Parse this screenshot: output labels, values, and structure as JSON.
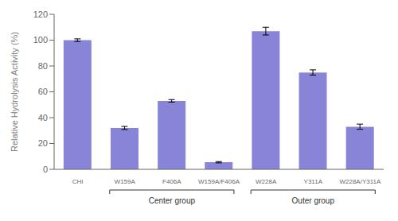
{
  "chart_data": {
    "type": "bar",
    "categories": [
      "CHI",
      "W159A",
      "F406A",
      "W159A/F406A",
      "W228A",
      "Y311A",
      "W228A/Y311A"
    ],
    "values": [
      100,
      32,
      53,
      5.5,
      107,
      75,
      33
    ],
    "errors": [
      1.0,
      1.2,
      1.0,
      0.5,
      3.0,
      2.0,
      2.0
    ],
    "ylabel": "Relative Hydrolysis Activity (%)",
    "ylim": [
      0,
      120
    ],
    "yticks": [
      0,
      20,
      40,
      60,
      80,
      100,
      120
    ],
    "color": "#8884d8",
    "grid": false,
    "annotations": [
      {
        "text": "Center group",
        "from": "W159A",
        "to": "W159A/F406A"
      },
      {
        "text": "Outer group",
        "from": "W228A",
        "to": "W228A/Y311A"
      }
    ]
  }
}
